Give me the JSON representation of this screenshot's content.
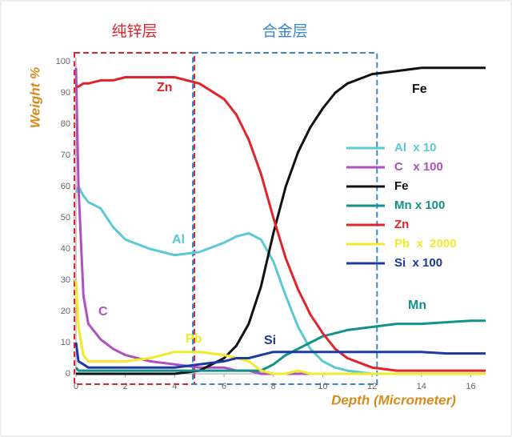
{
  "chart_data": {
    "type": "line",
    "regions": [
      {
        "label": "纯锌层",
        "x": [
          0,
          4.8
        ],
        "color": "#d9272e"
      },
      {
        "label": "合金层",
        "x": [
          4.8,
          12.2
        ],
        "color": "#3a86c8"
      }
    ],
    "y_label": "Weight %",
    "x_label": "Depth (Micrometer)",
    "x": [
      0,
      0.1,
      0.3,
      0.5,
      1,
      1.5,
      2,
      3,
      4,
      5,
      6,
      6.5,
      7,
      7.5,
      8,
      8.5,
      9,
      9.5,
      10,
      10.5,
      11,
      12,
      13,
      14,
      15,
      16,
      16.6
    ],
    "series": [
      {
        "name": "Al  x 10",
        "annotation": "Al",
        "color": "#5bc8d3",
        "values": [
          58,
          60,
          57,
          55,
          53,
          47,
          43,
          40,
          38,
          39,
          42,
          44,
          45,
          43,
          36,
          25,
          15,
          8,
          4,
          2,
          1,
          0,
          0,
          0,
          0,
          0,
          0
        ]
      },
      {
        "name": "C   x 100",
        "annotation": "C",
        "color": "#b04fc0",
        "values": [
          98,
          60,
          25,
          16,
          11,
          8,
          6,
          4,
          3,
          2,
          2,
          1,
          1,
          0,
          0,
          0,
          0,
          0,
          0,
          0,
          0,
          0,
          0,
          0,
          0,
          0,
          0
        ]
      },
      {
        "name": "Fe",
        "annotation": "Fe",
        "color": "#111111",
        "values": [
          0,
          0,
          0,
          0,
          0,
          0,
          0,
          0,
          0,
          1,
          5,
          9,
          16,
          28,
          45,
          60,
          71,
          79,
          85,
          90,
          93,
          96,
          97,
          98,
          98,
          98,
          98
        ]
      },
      {
        "name": "Mn x 100",
        "annotation": "Mn",
        "color": "#13918a",
        "values": [
          2,
          1,
          1,
          1,
          1,
          1,
          1,
          1,
          1,
          1,
          1,
          1,
          1,
          1,
          3,
          6,
          8,
          10,
          12,
          13,
          14,
          15,
          16,
          16,
          16.5,
          17,
          17
        ]
      },
      {
        "name": "Zn",
        "annotation": "Zn",
        "color": "#e0242a",
        "values": [
          92,
          92,
          93,
          93,
          94,
          94,
          95,
          95,
          95,
          93,
          88,
          83,
          75,
          64,
          50,
          37,
          27,
          19,
          13,
          8,
          5,
          2,
          1,
          1,
          1,
          1,
          1
        ]
      },
      {
        "name": "Pb  x  2000",
        "annotation": "Pb",
        "color": "#f2e92a",
        "values": [
          30,
          15,
          6,
          4,
          4,
          4,
          4,
          5,
          7,
          7,
          6,
          5,
          4,
          1,
          0,
          0,
          1,
          0,
          0,
          0,
          0,
          0,
          0,
          0,
          0,
          0,
          0
        ]
      },
      {
        "name": "Si  x 100",
        "annotation": "Si",
        "color": "#1d3a9c",
        "values": [
          10,
          4,
          3,
          2,
          2,
          2,
          2,
          2,
          2,
          3,
          4,
          5,
          5,
          6,
          7,
          7,
          7,
          7,
          7,
          7,
          7,
          7,
          7,
          7,
          6.5,
          6.5,
          6.5
        ]
      }
    ],
    "xlim": [
      0,
      16.6
    ],
    "ylim": [
      0,
      100
    ],
    "xticks": [
      0,
      2,
      4,
      6,
      8,
      10,
      12,
      14,
      16
    ],
    "yticks": [
      0,
      10,
      20,
      30,
      40,
      50,
      60,
      70,
      80,
      90,
      100
    ],
    "legend": "right"
  }
}
